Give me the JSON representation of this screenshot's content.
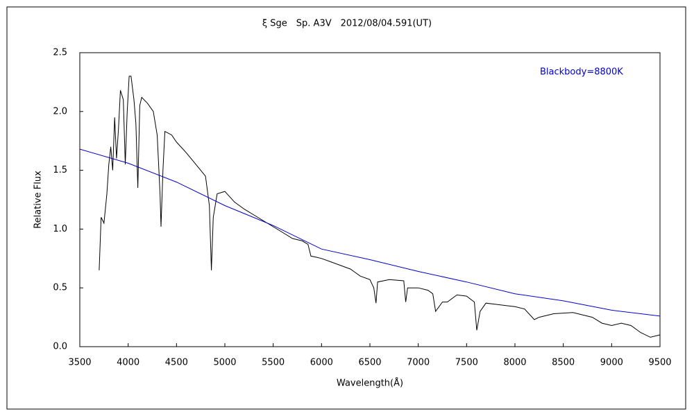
{
  "chart_data": {
    "type": "line",
    "title": "ξ Sge　Sp. A3V　2012/08/04.591(UT)",
    "x_label": "Wavelength(Å)",
    "y_label": "Relative Flux",
    "xlim": [
      3500,
      9500
    ],
    "xticks": [
      3500,
      4000,
      4500,
      5000,
      5500,
      6000,
      6500,
      7000,
      7500,
      8000,
      8500,
      9000,
      9500
    ],
    "ylim": [
      0,
      2.5
    ],
    "yticks": [
      {
        "value": 0,
        "label": "0.0"
      },
      0.5,
      {
        "value": 1,
        "label": "1.0"
      },
      1.5,
      {
        "value": 2,
        "label": "2.0"
      },
      2.5
    ],
    "grid": false,
    "series": [
      {
        "color": "#000000",
        "x": [
          3700,
          3720,
          3750,
          3780,
          3800,
          3820,
          3840,
          3860,
          3880,
          3900,
          3920,
          3950,
          3970,
          3990,
          4010,
          4030,
          4060,
          4080,
          4100,
          4120,
          4140,
          4200,
          4260,
          4300,
          4330,
          4340,
          4360,
          4380,
          4450,
          4500,
          4600,
          4700,
          4800,
          4840,
          4861,
          4880,
          4920,
          5000,
          5100,
          5200,
          5300,
          5400,
          5500,
          5600,
          5700,
          5800,
          5860,
          5890,
          5950,
          6000,
          6100,
          6200,
          6300,
          6400,
          6500,
          6540,
          6563,
          6580,
          6700,
          6850,
          6870,
          6890,
          7000,
          7100,
          7150,
          7180,
          7250,
          7300,
          7400,
          7500,
          7580,
          7605,
          7640,
          7700,
          7800,
          7900,
          8000,
          8100,
          8200,
          8250,
          8400,
          8600,
          8800,
          8900,
          9000,
          9100,
          9200,
          9300,
          9400,
          9500
        ],
        "values": [
          0.65,
          1.1,
          1.05,
          1.3,
          1.55,
          1.7,
          1.5,
          1.95,
          1.6,
          1.85,
          2.18,
          2.1,
          1.55,
          2.0,
          2.3,
          2.3,
          2.1,
          1.9,
          1.35,
          2.05,
          2.12,
          2.07,
          2.0,
          1.8,
          1.3,
          1.02,
          1.5,
          1.83,
          1.8,
          1.74,
          1.65,
          1.55,
          1.45,
          1.2,
          0.65,
          1.1,
          1.3,
          1.32,
          1.23,
          1.17,
          1.12,
          1.07,
          1.02,
          0.97,
          0.92,
          0.9,
          0.87,
          0.77,
          0.76,
          0.75,
          0.72,
          0.69,
          0.66,
          0.6,
          0.57,
          0.5,
          0.37,
          0.55,
          0.57,
          0.56,
          0.38,
          0.5,
          0.5,
          0.48,
          0.45,
          0.3,
          0.38,
          0.38,
          0.44,
          0.43,
          0.38,
          0.14,
          0.3,
          0.37,
          0.36,
          0.35,
          0.34,
          0.32,
          0.23,
          0.25,
          0.28,
          0.29,
          0.25,
          0.2,
          0.18,
          0.2,
          0.18,
          0.12,
          0.08,
          0.1
        ]
      },
      {
        "name": "Blackbody=8800K",
        "color": "#0000cc",
        "x": [
          3500,
          4000,
          4500,
          5000,
          5500,
          6000,
          6500,
          7000,
          7500,
          8000,
          8500,
          9000,
          9500
        ],
        "values": [
          1.68,
          1.56,
          1.4,
          1.2,
          1.03,
          0.83,
          0.74,
          0.64,
          0.55,
          0.45,
          0.39,
          0.31,
          0.26
        ]
      }
    ]
  }
}
